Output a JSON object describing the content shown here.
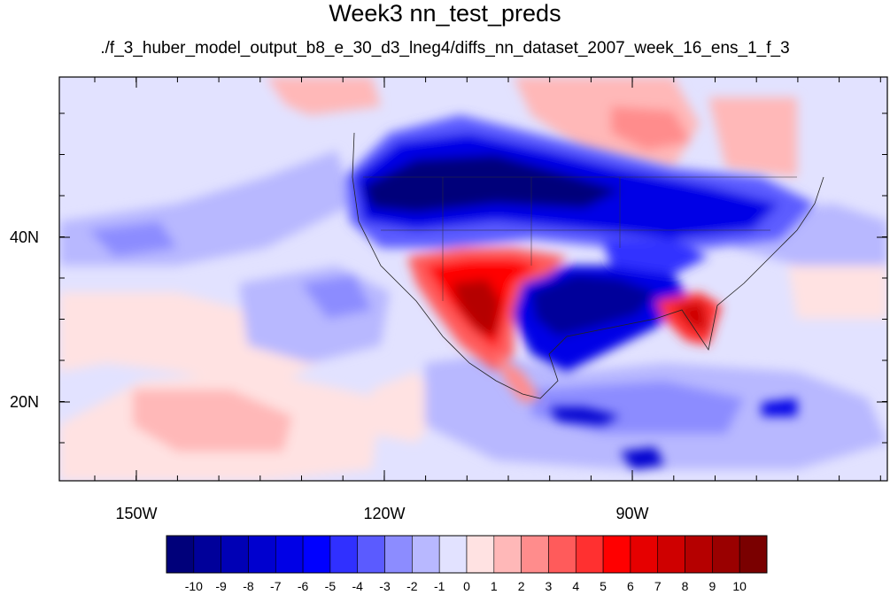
{
  "title": "Week3 nn_test_preds",
  "subtitle": "./f_3_huber_model_output_b8_e_30_d3_lneg4/diffs_nn_dataset_2007_week_16_ens_1_f_3",
  "map": {
    "lon_labels": [
      "150W",
      "120W",
      "90W"
    ],
    "lat_labels": [
      "40N",
      "20N"
    ]
  },
  "colorbar": {
    "labels": [
      "-10",
      "-9",
      "-8",
      "-7",
      "-6",
      "-5",
      "-4",
      "-3",
      "-2",
      "-1",
      "0",
      "1",
      "2",
      "3",
      "4",
      "5",
      "6",
      "7",
      "8",
      "9",
      "10"
    ],
    "colors": [
      "#00007a",
      "#00009a",
      "#0000b5",
      "#0000cf",
      "#0000e6",
      "#0000ff",
      "#3030ff",
      "#5b5bff",
      "#8c8cff",
      "#b8b8ff",
      "#e2e2ff",
      "#ffe2e2",
      "#ffb8b8",
      "#ff8c8c",
      "#ff5b5b",
      "#ff3030",
      "#ff0000",
      "#e60000",
      "#cf0000",
      "#b50000",
      "#9a0000",
      "#7a0000"
    ]
  }
}
